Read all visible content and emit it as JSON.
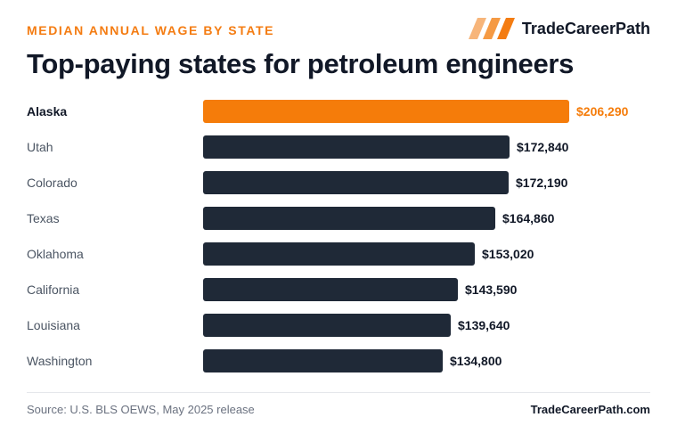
{
  "header": {
    "eyebrow": "MEDIAN ANNUAL WAGE BY STATE",
    "title": "Top-paying states for petroleum engineers",
    "brand_name": "TradeCareerPath"
  },
  "footer": {
    "source": "Source: U.S. BLS OEWS, May 2025 release",
    "site": "TradeCareerPath.com"
  },
  "colors": {
    "highlight": "#f57c0a",
    "bar": "#1f2937",
    "brand_orange": "#f47c12"
  },
  "chart_data": {
    "type": "bar",
    "orientation": "horizontal",
    "title": "Top-paying states for petroleum engineers",
    "categories": [
      "Alaska",
      "Utah",
      "Colorado",
      "Texas",
      "Oklahoma",
      "California",
      "Louisiana",
      "Washington"
    ],
    "values": [
      206290,
      172840,
      172190,
      164860,
      153020,
      143590,
      139640,
      134800
    ],
    "value_labels": [
      "$206,290",
      "$172,840",
      "$172,190",
      "$164,860",
      "$153,020",
      "$143,590",
      "$139,640",
      "$134,800"
    ],
    "highlighted_category": "Alaska",
    "xlim": [
      0,
      206290
    ],
    "grid": false,
    "legend": "none"
  }
}
